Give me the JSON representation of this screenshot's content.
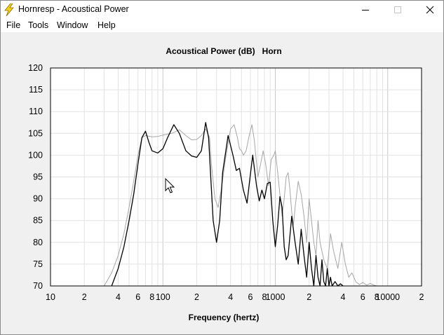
{
  "window": {
    "title": "Hornresp - Acoustical Power",
    "icon": "lightning-bolt-icon",
    "controls": [
      "minimize-icon",
      "maximize-icon",
      "close-icon"
    ]
  },
  "menu": {
    "items": [
      "File",
      "Tools",
      "Window",
      "Help"
    ]
  },
  "colors": {
    "plot_bg": "#ffffff",
    "grid_minor": "#e2e2e2",
    "grid_major": "#c8c8c8",
    "primary_trace": "#000000",
    "reference_trace": "#a6a6a6",
    "icon_yellow": "#f7d21a"
  },
  "chart_data": {
    "type": "line",
    "title": "Acoustical Power (dB)",
    "subtitle": "Horn",
    "xlabel": "Frequency (hertz)",
    "ylabel": "",
    "x_scale": "log",
    "xlim": [
      10,
      20000
    ],
    "ylim": [
      70,
      120
    ],
    "y_ticks": [
      70,
      75,
      80,
      85,
      90,
      95,
      100,
      105,
      110,
      115,
      120
    ],
    "x_tick_values": [
      10,
      20,
      40,
      60,
      80,
      100,
      200,
      400,
      600,
      800,
      1000,
      2000,
      4000,
      6000,
      8000,
      10000,
      20000
    ],
    "x_tick_labels": [
      "10",
      "2",
      "4",
      "6",
      "8",
      "100",
      "2",
      "4",
      "6",
      "8",
      "1000",
      "2",
      "4",
      "6",
      "8",
      "10000",
      "2"
    ],
    "grid": true,
    "series": [
      {
        "style": "black",
        "x": [
          35,
          40,
          45,
          50,
          55,
          60,
          65,
          70,
          75,
          80,
          90,
          100,
          110,
          125,
          140,
          160,
          180,
          200,
          220,
          240,
          255,
          265,
          280,
          300,
          320,
          340,
          380,
          420,
          450,
          480,
          520,
          560,
          590,
          630,
          680,
          720,
          760,
          800,
          850,
          900,
          950,
          1000,
          1050,
          1100,
          1150,
          1200,
          1250,
          1300,
          1400,
          1500,
          1600,
          1700,
          1800,
          1900,
          2000,
          2100,
          2200,
          2300,
          2400,
          2500,
          2600,
          2700,
          2800,
          2900,
          3000,
          3100,
          3200,
          3400,
          3600,
          3800,
          4000
        ],
        "y": [
          70,
          74,
          79,
          85,
          91,
          98,
          104,
          105.5,
          103,
          101,
          100.5,
          101.5,
          104,
          107,
          105,
          101,
          99.8,
          99.5,
          101,
          107.5,
          104,
          96,
          85,
          80,
          85,
          96,
          104.5,
          100,
          96.5,
          97,
          92,
          89,
          94,
          100,
          93,
          89.5,
          92,
          90,
          93.5,
          93.8,
          85,
          79,
          84,
          90.5,
          88,
          79,
          76,
          77,
          86,
          80,
          75,
          83,
          77,
          72,
          80,
          74,
          70,
          77,
          72,
          70,
          76,
          71,
          70,
          74,
          70,
          72,
          70,
          71,
          70,
          70.5,
          70
        ]
      },
      {
        "style": "gray",
        "x": [
          30,
          35,
          40,
          45,
          50,
          55,
          60,
          65,
          70,
          80,
          90,
          100,
          120,
          140,
          160,
          180,
          200,
          220,
          240,
          260,
          270,
          290,
          310,
          330,
          360,
          400,
          430,
          460,
          480,
          500,
          520,
          550,
          580,
          620,
          650,
          700,
          740,
          780,
          820,
          870,
          920,
          970,
          1000,
          1050,
          1100,
          1150,
          1200,
          1250,
          1300,
          1350,
          1400,
          1450,
          1500,
          1600,
          1700,
          1800,
          1900,
          2000,
          2100,
          2200,
          2300,
          2400,
          2500,
          2700,
          2900,
          3100,
          3300,
          3600,
          3900,
          4200,
          4500,
          4800,
          5200,
          5600,
          6000,
          6500,
          7000,
          7500,
          8000
        ],
        "y": [
          70,
          73,
          77,
          82,
          88,
          94,
          100,
          104,
          104.5,
          104.2,
          104.3,
          104.6,
          105,
          105.8,
          104.5,
          103.5,
          103.6,
          104.5,
          106,
          104,
          98,
          90,
          88,
          92,
          99,
          106,
          107,
          104,
          101.5,
          101,
          100,
          101,
          104,
          107,
          103.5,
          95,
          98,
          101,
          98,
          93,
          99,
          100,
          101,
          96,
          91,
          86,
          90,
          95,
          96,
          92,
          87,
          84,
          88,
          94,
          91,
          86,
          80,
          90,
          85,
          80,
          77,
          85,
          80,
          76,
          74,
          82,
          78,
          74,
          80,
          75,
          72,
          73,
          71,
          70.3,
          70.8,
          70.2,
          70.6,
          70.2,
          70
        ]
      }
    ]
  }
}
